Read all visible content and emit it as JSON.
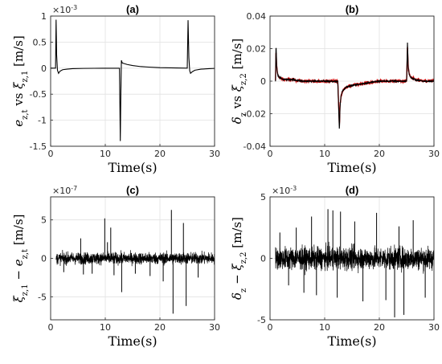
{
  "chart_data": [
    {
      "type": "line",
      "title": "(a)",
      "xlabel": "Time(s)",
      "ylabel": "e_{z,t}  vs  ξ_{z,1} [m/s]",
      "x_ticks": [
        "0",
        "10",
        "20",
        "30"
      ],
      "y_ticks": [
        "1",
        "0.5",
        "0",
        "-0.5",
        "-1",
        "-1.5"
      ],
      "y_exponent": "×10-3",
      "xlim": [
        0,
        30
      ],
      "ylim": [
        -1.5,
        1.0
      ],
      "grid": true,
      "series": [
        {
          "color": "#000000",
          "x": [
            0,
            0.5,
            0.9,
            1.0,
            1.1,
            1.25,
            1.45,
            1.7,
            2.2,
            3,
            4,
            6,
            8,
            10,
            12.6,
            12.75,
            12.85,
            12.95,
            13.1,
            13.4,
            14,
            15,
            16.5,
            18,
            20,
            22,
            24,
            25,
            25.15,
            25.3,
            25.45,
            25.6,
            25.9,
            26.4,
            27.5,
            29,
            30
          ],
          "y": [
            0,
            0,
            0,
            0.93,
            0.25,
            -0.04,
            -0.1,
            -0.06,
            -0.03,
            -0.02,
            -0.01,
            -0.005,
            -0.003,
            -0.002,
            -0.002,
            -1.4,
            -0.5,
            0.15,
            0.1,
            0.09,
            0.07,
            0.05,
            0.03,
            0.02,
            0.01,
            0.005,
            0.002,
            0.0,
            0.92,
            0.2,
            -0.05,
            -0.1,
            -0.07,
            -0.04,
            -0.02,
            -0.01,
            -0.005
          ]
        }
      ]
    },
    {
      "type": "line",
      "title": "(b)",
      "xlabel": "Time(s)",
      "ylabel": "δ_z  vs  ξ_{z,2} [m/s]",
      "x_ticks": [
        "0",
        "10",
        "20",
        "30"
      ],
      "y_ticks": [
        "0.04",
        "0.02",
        "0",
        "-0.02",
        "-0.04"
      ],
      "xlim": [
        0,
        30
      ],
      "ylim": [
        -0.04,
        0.04
      ],
      "grid": true,
      "noise": {
        "black_amplitude": 0.0008,
        "red_amplitude": 0.0015
      },
      "series": [
        {
          "color": "#d90000",
          "x": [
            1,
            1.1,
            1.2,
            1.4,
            1.8,
            2.5,
            4,
            6,
            8,
            10,
            12.4,
            12.7,
            12.8,
            13.0,
            13.3,
            13.8,
            14.5,
            16,
            18,
            20,
            23,
            25,
            25.15,
            25.3,
            25.5,
            25.8,
            26.5,
            28,
            30
          ],
          "y": [
            0,
            0.02,
            0.01,
            0.004,
            0.002,
            0.001,
            0.001,
            0.0,
            0.0,
            0.0,
            0.0,
            -0.028,
            -0.015,
            -0.009,
            -0.006,
            -0.004,
            -0.003,
            -0.002,
            -0.001,
            0.0,
            0.0,
            0.0,
            0.021,
            0.008,
            0.004,
            0.002,
            0.001,
            0.0,
            0.0
          ]
        },
        {
          "color": "#000000",
          "x": [
            1,
            1.1,
            1.2,
            1.4,
            1.8,
            2.5,
            4,
            6,
            8,
            10,
            12.4,
            12.7,
            12.8,
            13.0,
            13.3,
            13.8,
            14.5,
            16,
            18,
            20,
            23,
            25,
            25.15,
            25.3,
            25.5,
            25.8,
            26.5,
            28,
            30
          ],
          "y": [
            0,
            0.024,
            0.01,
            0.004,
            0.002,
            0.001,
            0.001,
            0.0,
            0.0,
            0.0,
            0.0,
            -0.031,
            -0.016,
            -0.009,
            -0.006,
            -0.004,
            -0.003,
            -0.002,
            -0.001,
            0.0,
            0.0,
            0.0,
            0.024,
            0.008,
            0.004,
            0.002,
            0.001,
            0.0,
            0.0
          ]
        }
      ]
    },
    {
      "type": "line",
      "title": "(c)",
      "xlabel": "Time(s)",
      "ylabel": "ξ_{z,1} − e_{z,t} [m/s]",
      "x_ticks": [
        "0",
        "10",
        "20",
        "30"
      ],
      "y_ticks": [
        "5",
        "0",
        "-5"
      ],
      "y_exponent": "×10-7",
      "xlim": [
        0,
        30
      ],
      "ylim": [
        -8,
        8
      ],
      "grid": true,
      "noise": {
        "start": 1,
        "end": 30,
        "amplitude": 1.0
      },
      "spikes": [
        {
          "x": 2.4,
          "y": -1.8
        },
        {
          "x": 5.5,
          "y": 2.6
        },
        {
          "x": 6.0,
          "y": -2.1
        },
        {
          "x": 7.6,
          "y": -2.0
        },
        {
          "x": 9.9,
          "y": 5.2
        },
        {
          "x": 10.4,
          "y": 2.1
        },
        {
          "x": 11.0,
          "y": 4.0
        },
        {
          "x": 11.6,
          "y": -2.2
        },
        {
          "x": 13.0,
          "y": -4.4
        },
        {
          "x": 15.5,
          "y": -2.0
        },
        {
          "x": 18.2,
          "y": -2.3
        },
        {
          "x": 20.6,
          "y": -3.0
        },
        {
          "x": 22.1,
          "y": 6.3
        },
        {
          "x": 22.4,
          "y": -7.2
        },
        {
          "x": 24.3,
          "y": 4.6
        },
        {
          "x": 24.8,
          "y": -6.2
        },
        {
          "x": 27.0,
          "y": -2.5
        }
      ]
    },
    {
      "type": "line",
      "title": "(d)",
      "xlabel": "Time(s)",
      "ylabel": "δ_z − ξ_{z,2} [m/s]",
      "x_ticks": [
        "0",
        "10",
        "20",
        "30"
      ],
      "y_ticks": [
        "5",
        "0",
        "-5"
      ],
      "y_exponent": "×10-3",
      "xlim": [
        0,
        30
      ],
      "ylim": [
        -5,
        5
      ],
      "grid": true,
      "noise": {
        "start": 1,
        "end": 30,
        "amplitude": 1.2
      },
      "spikes": [
        {
          "x": 1.8,
          "y": 2.1
        },
        {
          "x": 3.4,
          "y": -2.2
        },
        {
          "x": 4.8,
          "y": 2.5
        },
        {
          "x": 6.2,
          "y": -2.8
        },
        {
          "x": 7.6,
          "y": 3.4
        },
        {
          "x": 8.5,
          "y": -3.0
        },
        {
          "x": 10.6,
          "y": 4.0
        },
        {
          "x": 11.5,
          "y": 3.9
        },
        {
          "x": 12.3,
          "y": -3.2
        },
        {
          "x": 12.9,
          "y": 3.8
        },
        {
          "x": 15.5,
          "y": 3.0
        },
        {
          "x": 17.0,
          "y": -3.5
        },
        {
          "x": 19.5,
          "y": 3.7
        },
        {
          "x": 21.2,
          "y": -3.4
        },
        {
          "x": 22.8,
          "y": -4.8
        },
        {
          "x": 23.6,
          "y": 2.6
        },
        {
          "x": 24.5,
          "y": -4.6
        },
        {
          "x": 26.2,
          "y": 3.1
        },
        {
          "x": 28.4,
          "y": -3.2
        }
      ]
    }
  ]
}
